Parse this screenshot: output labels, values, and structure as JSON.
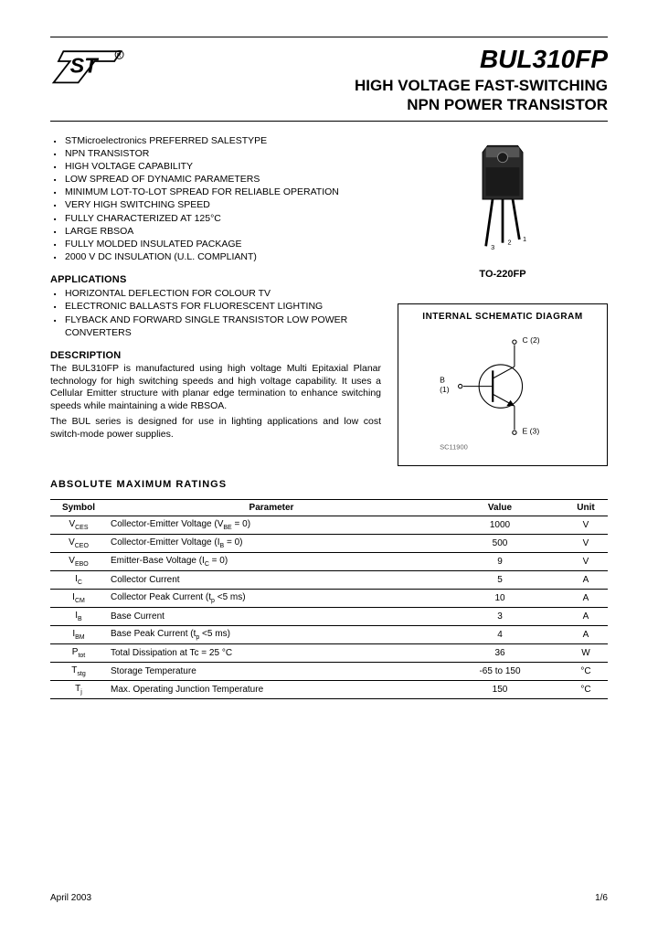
{
  "header": {
    "part_number": "BUL310FP",
    "subtitle_line1": "HIGH VOLTAGE FAST-SWITCHING",
    "subtitle_line2": "NPN POWER TRANSISTOR"
  },
  "features": [
    "STMicroelectronics PREFERRED SALESTYPE",
    "NPN TRANSISTOR",
    "HIGH VOLTAGE CAPABILITY",
    "LOW SPREAD OF DYNAMIC PARAMETERS",
    "MINIMUM LOT-TO-LOT SPREAD FOR RELIABLE OPERATION",
    "VERY HIGH SWITCHING SPEED",
    "FULLY CHARACTERIZED AT 125°C",
    "LARGE RBSOA",
    "FULLY MOLDED INSULATED PACKAGE",
    "2000 V DC INSULATION (U.L. COMPLIANT)"
  ],
  "applications_head": "APPLICATIONS",
  "applications": [
    "HORIZONTAL DEFLECTION FOR COLOUR TV",
    "ELECTRONIC BALLASTS FOR FLUORESCENT LIGHTING",
    "FLYBACK AND FORWARD SINGLE TRANSISTOR LOW POWER CONVERTERS"
  ],
  "description_head": "DESCRIPTION",
  "description": [
    "The BUL310FP is manufactured using high voltage Multi Epitaxial Planar technology for high switching speeds and high voltage capability. It uses a Cellular Emitter structure with planar edge termination to enhance switching speeds while maintaining a wide RBSOA.",
    "The BUL series is designed for use in lighting applications and low cost switch-mode power supplies."
  ],
  "package_label": "TO-220FP",
  "schematic_title": "INTERNAL  SCHEMATIC  DIAGRAM",
  "ratings_head": "ABSOLUTE  MAXIMUM  RATINGS",
  "ratings": {
    "columns": [
      "Symbol",
      "Parameter",
      "Value",
      "Unit"
    ],
    "rows": [
      {
        "sym": "V<sub>CES</sub>",
        "param": "Collector-Emitter Voltage (V<sub>BE</sub> = 0)",
        "val": "1000",
        "unit": "V"
      },
      {
        "sym": "V<sub>CEO</sub>",
        "param": "Collector-Emitter Voltage (I<sub>B</sub> = 0)",
        "val": "500",
        "unit": "V"
      },
      {
        "sym": "V<sub>EBO</sub>",
        "param": "Emitter-Base Voltage (I<sub>C</sub> = 0)",
        "val": "9",
        "unit": "V"
      },
      {
        "sym": "I<sub>C</sub>",
        "param": "Collector Current",
        "val": "5",
        "unit": "A"
      },
      {
        "sym": "I<sub>CM</sub>",
        "param": "Collector Peak Current (t<sub>p</sub> <5 ms)",
        "val": "10",
        "unit": "A"
      },
      {
        "sym": "I<sub>B</sub>",
        "param": "Base Current",
        "val": "3",
        "unit": "A"
      },
      {
        "sym": "I<sub>BM</sub>",
        "param": "Base Peak Current (t<sub>p</sub> <5 ms)",
        "val": "4",
        "unit": "A"
      },
      {
        "sym": "P<sub>tot</sub>",
        "param": "Total Dissipation at Tc = 25 °C",
        "val": "36",
        "unit": "W"
      },
      {
        "sym": "T<sub>stg</sub>",
        "param": "Storage Temperature",
        "val": "-65 to 150",
        "unit": "°C"
      },
      {
        "sym": "T<sub>j</sub>",
        "param": "Max. Operating Junction Temperature",
        "val": "150",
        "unit": "°C"
      }
    ]
  },
  "footer": {
    "date": "April 2003",
    "page": "1/6"
  },
  "colors": {
    "text": "#000000",
    "bg": "#ffffff"
  }
}
